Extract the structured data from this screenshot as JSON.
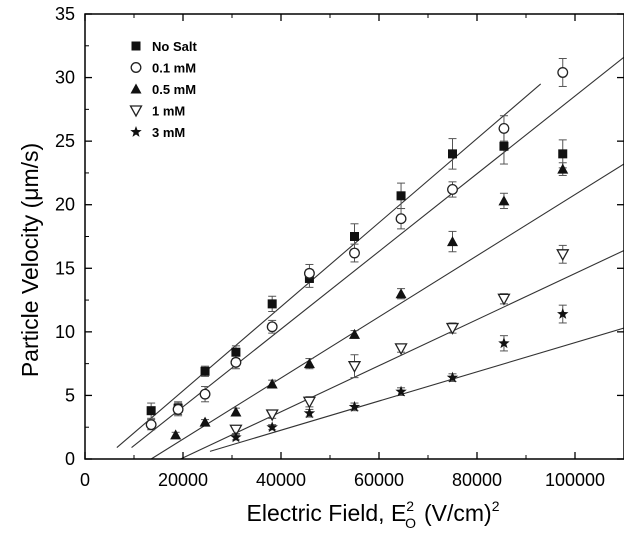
{
  "chart_data": {
    "type": "scatter",
    "title": "",
    "xlabel": {
      "main": "Electric Field, E",
      "sup": "2",
      "sub": "O",
      "unit": "(V/cm)",
      "unit_sup": "2"
    },
    "ylabel": "Particle Velocity (μm/s)",
    "xlim": [
      0,
      110000
    ],
    "ylim": [
      0,
      35
    ],
    "x_ticks": [
      0,
      20000,
      40000,
      60000,
      80000,
      100000
    ],
    "x_tick_labels": [
      "0",
      "20000",
      "40000",
      "60000",
      "80000",
      "100000"
    ],
    "y_ticks": [
      0,
      5,
      10,
      15,
      20,
      25,
      30,
      35
    ],
    "y_tick_labels": [
      "0",
      "5",
      "10",
      "15",
      "20",
      "25",
      "30",
      "35"
    ],
    "legend_position": "top-left",
    "series": [
      {
        "name": "No Salt",
        "marker": "square-filled",
        "x": [
          13500,
          19000,
          24500,
          30800,
          38200,
          45800,
          55000,
          64500,
          75000,
          85500,
          97500
        ],
        "y": [
          3.8,
          4.0,
          6.9,
          8.4,
          12.2,
          14.2,
          17.5,
          20.7,
          24.0,
          24.6,
          24.0
        ],
        "err": [
          0.6,
          0.5,
          0.4,
          0.5,
          0.6,
          0.7,
          1.0,
          1.0,
          1.2,
          1.4,
          1.1
        ],
        "fit": {
          "x": [
            6500,
            93000
          ],
          "y": [
            0.9,
            29.5
          ]
        }
      },
      {
        "name": "0.1 mM",
        "marker": "circle-open",
        "x": [
          13500,
          19000,
          24500,
          30800,
          38200,
          45800,
          55000,
          64500,
          75000,
          85500,
          97500
        ],
        "y": [
          2.7,
          3.9,
          5.1,
          7.6,
          10.4,
          14.6,
          16.2,
          18.9,
          21.2,
          26.0,
          30.4
        ],
        "err": [
          0.4,
          0.5,
          0.6,
          0.5,
          0.5,
          0.7,
          0.7,
          0.8,
          0.6,
          1.0,
          1.1
        ],
        "fit": {
          "x": [
            9500,
            110000
          ],
          "y": [
            0.9,
            31.6
          ]
        }
      },
      {
        "name": "0.5 mM",
        "marker": "triangle-up-filled",
        "x": [
          18500,
          24500,
          30800,
          38200,
          45800,
          55000,
          64500,
          75000,
          85500,
          97500
        ],
        "y": [
          1.9,
          2.9,
          3.7,
          5.9,
          7.5,
          9.8,
          13.0,
          17.1,
          20.3,
          22.8
        ],
        "err": [
          0.2,
          0.2,
          0.3,
          0.3,
          0.4,
          0.3,
          0.4,
          0.8,
          0.6,
          0.5
        ],
        "fit": {
          "x": [
            13500,
            110000
          ],
          "y": [
            0.0,
            23.2
          ]
        }
      },
      {
        "name": "1 mM",
        "marker": "triangle-down-open",
        "x": [
          30800,
          38200,
          45800,
          55000,
          64500,
          75000,
          85500,
          97500
        ],
        "y": [
          2.3,
          3.5,
          4.5,
          7.3,
          8.7,
          10.3,
          12.6,
          16.1
        ],
        "err": [
          0.3,
          0.3,
          0.4,
          0.9,
          0.3,
          0.4,
          0.4,
          0.7
        ],
        "fit": {
          "x": [
            19500,
            110000
          ],
          "y": [
            0.0,
            16.4
          ]
        }
      },
      {
        "name": "3 mM",
        "marker": "star-filled",
        "x": [
          30800,
          38200,
          45800,
          55000,
          64500,
          75000,
          85500,
          97500
        ],
        "y": [
          1.7,
          2.5,
          3.6,
          4.1,
          5.3,
          6.4,
          9.1,
          11.4
        ],
        "err": [
          0.2,
          0.2,
          0.3,
          0.3,
          0.3,
          0.3,
          0.6,
          0.7
        ],
        "fit": {
          "x": [
            25500,
            110000
          ],
          "y": [
            0.6,
            10.3
          ]
        }
      }
    ]
  }
}
